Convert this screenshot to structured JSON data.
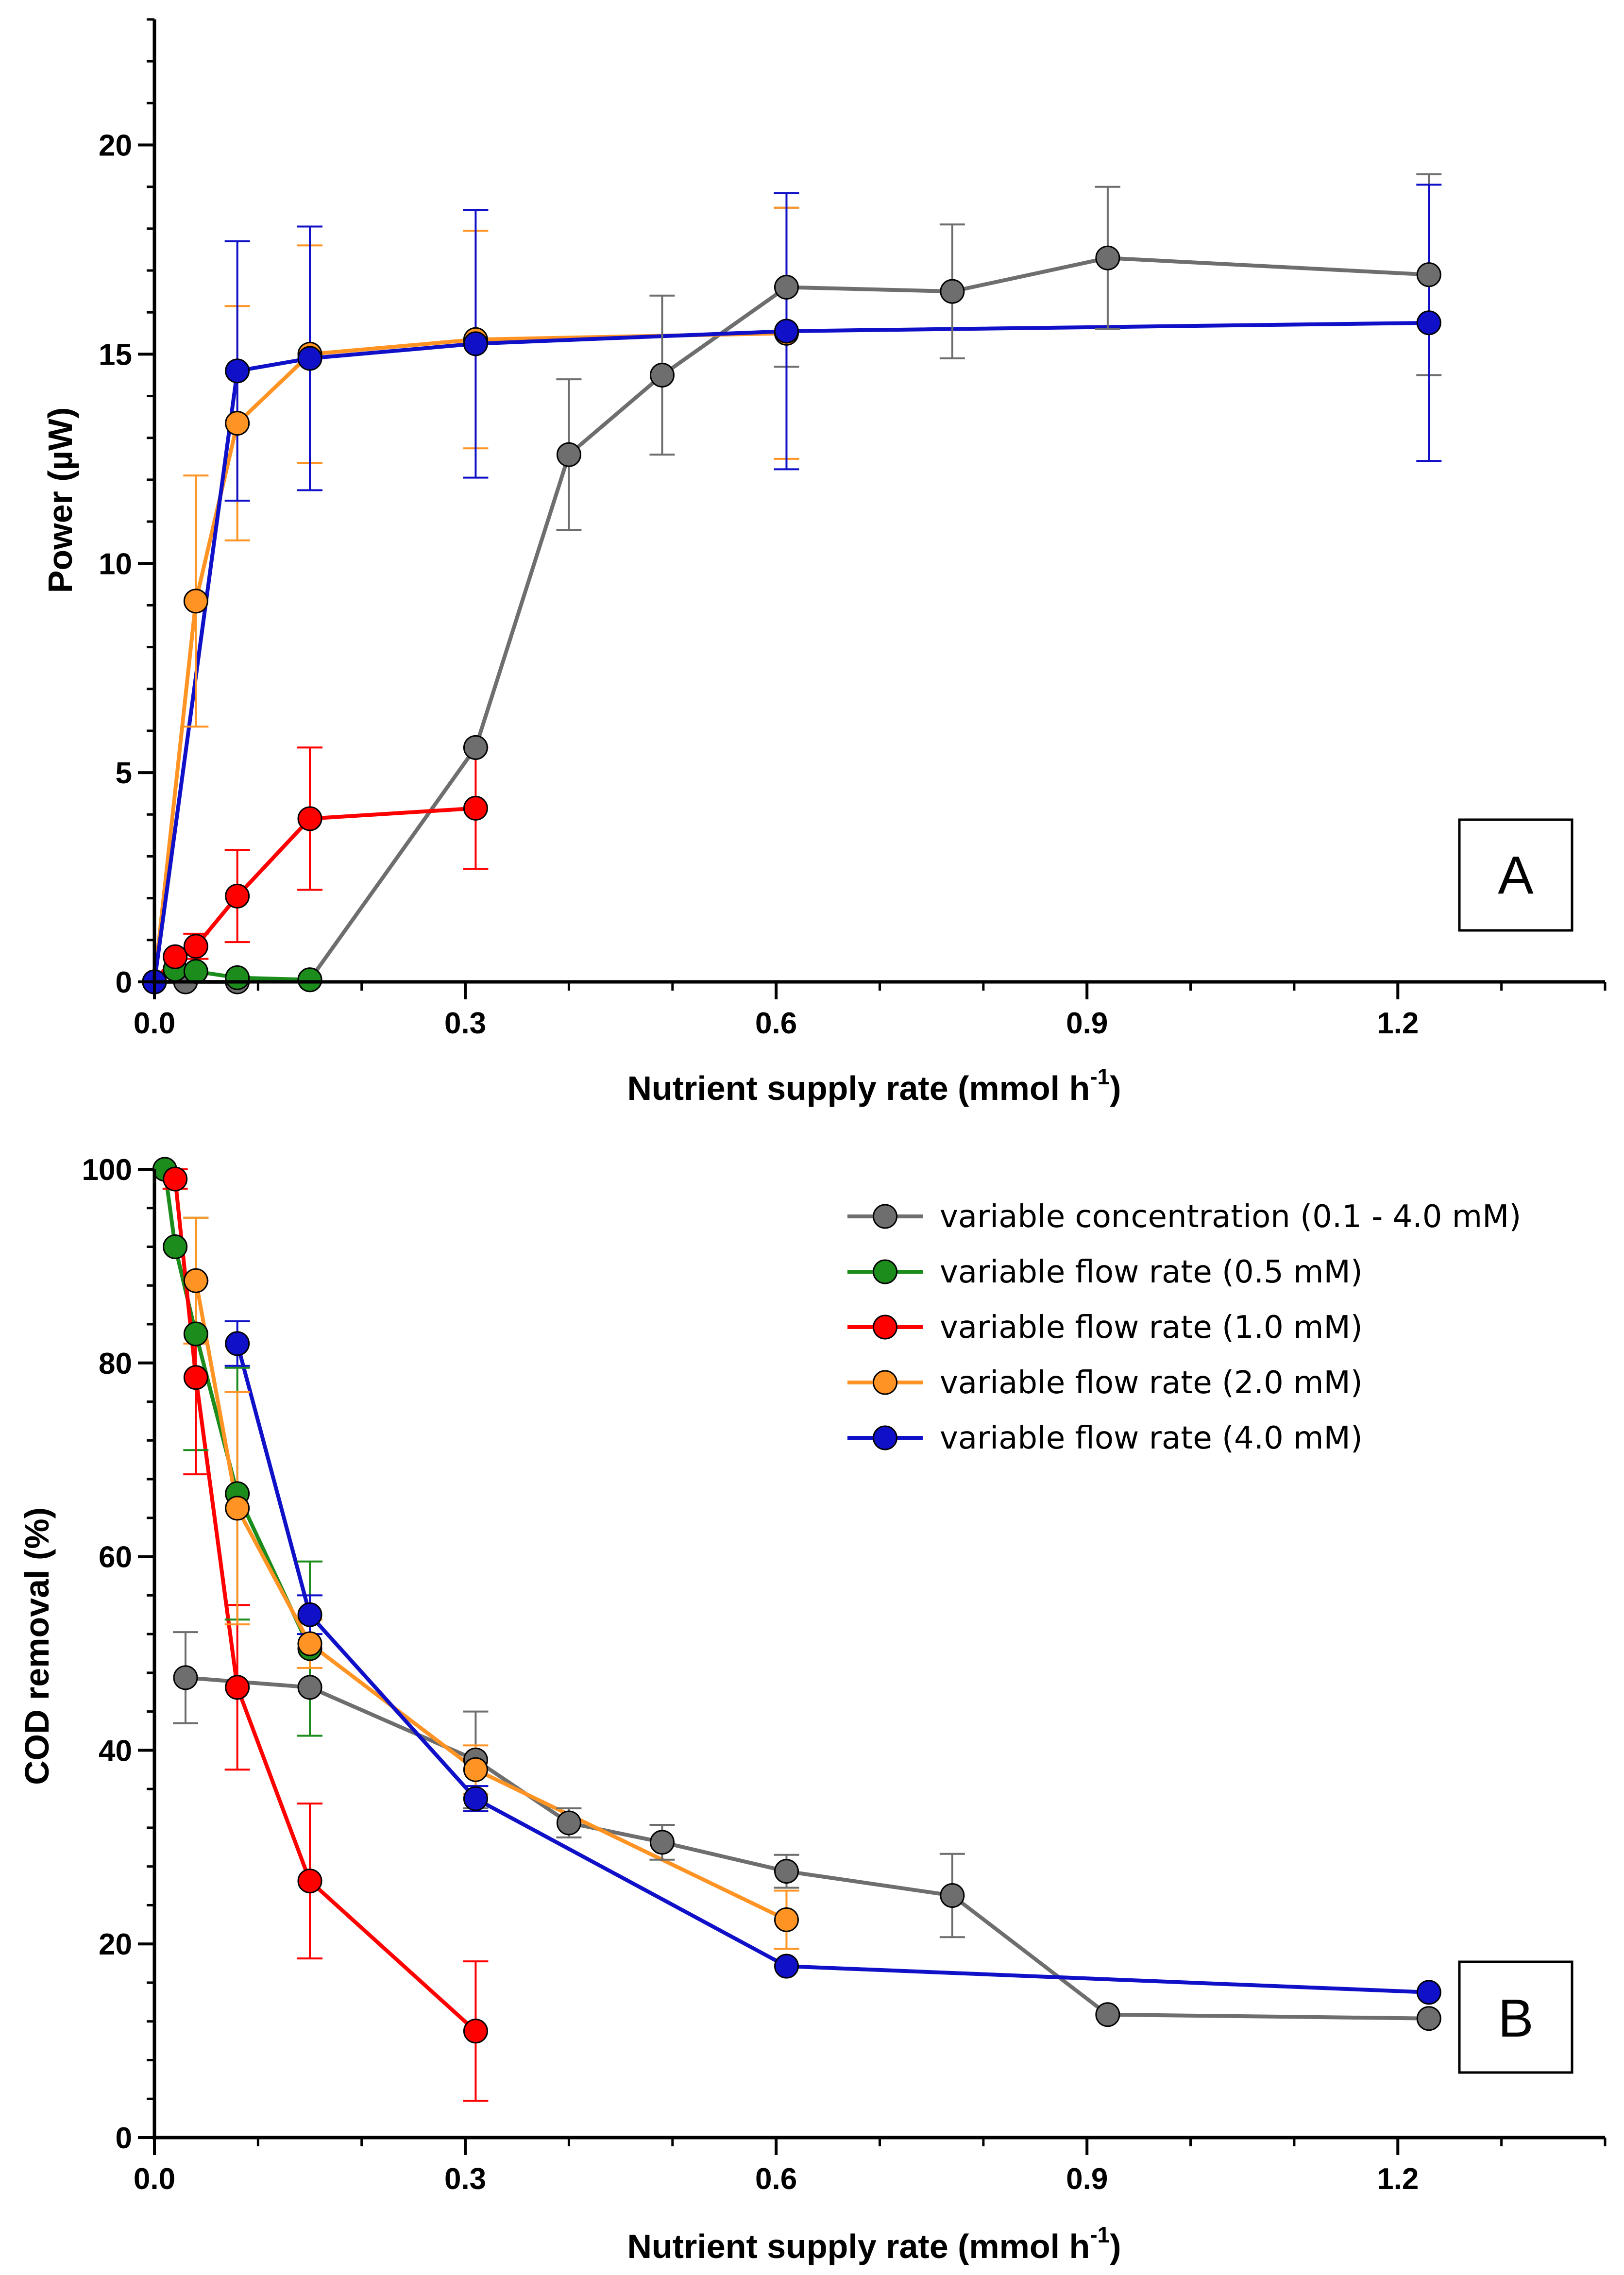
{
  "colors": {
    "grey": "#6e6e6e",
    "green": "#1c8c1c",
    "red": "#ff0000",
    "orange": "#ff9424",
    "blue": "#1010c8"
  },
  "chart_data": [
    {
      "type": "line",
      "id": "A",
      "panel_label": "A",
      "title": "",
      "xlabel": "Nutrient supply rate (mmol h",
      "xlabel_sup": "-1",
      "xlabel_close": ")",
      "ylabel": "Power (µW)",
      "xlim": [
        0,
        1.4
      ],
      "ylim": [
        0,
        23
      ],
      "xticks": [
        0.0,
        0.3,
        0.6,
        0.9,
        1.2
      ],
      "xtick_labels": [
        "0.0",
        "0.3",
        "0.6",
        "0.9",
        "1.2"
      ],
      "yticks": [
        0,
        5,
        10,
        15,
        20
      ],
      "ytick_labels": [
        "0",
        "5",
        "10",
        "15",
        "20"
      ],
      "series": [
        {
          "name": "variable concentration (0.1 - 4.0 mM)",
          "color_key": "grey",
          "x": [
            0.0,
            0.03,
            0.08,
            0.15,
            0.31,
            0.4,
            0.49,
            0.61,
            0.77,
            0.92,
            1.23
          ],
          "y": [
            0.0,
            0.0,
            0.0,
            0.05,
            5.6,
            12.6,
            14.5,
            16.6,
            16.5,
            17.3,
            16.9
          ],
          "err": [
            0,
            0,
            0,
            0,
            0,
            1.8,
            1.9,
            1.9,
            1.6,
            1.7,
            2.4
          ]
        },
        {
          "name": "variable flow rate (0.5 mM)",
          "color_key": "green",
          "x": [
            0.0,
            0.02,
            0.04,
            0.08,
            0.15
          ],
          "y": [
            0.0,
            0.3,
            0.25,
            0.1,
            0.05
          ],
          "err": [
            0,
            0,
            0,
            0,
            0
          ]
        },
        {
          "name": "variable flow rate (1.0 mM)",
          "color_key": "red",
          "x": [
            0.0,
            0.02,
            0.04,
            0.08,
            0.15,
            0.31
          ],
          "y": [
            0.0,
            0.6,
            0.85,
            2.05,
            3.9,
            4.15
          ],
          "err": [
            0,
            0,
            0.3,
            1.1,
            1.7,
            1.45
          ]
        },
        {
          "name": "variable flow rate (2.0 mM)",
          "color_key": "orange",
          "x": [
            0.0,
            0.04,
            0.08,
            0.15,
            0.31,
            0.61
          ],
          "y": [
            0.0,
            9.1,
            13.35,
            15.0,
            15.35,
            15.5
          ],
          "err": [
            0,
            3.0,
            2.8,
            2.6,
            2.6,
            3.0
          ]
        },
        {
          "name": "variable flow rate (4.0 mM)",
          "color_key": "blue",
          "x": [
            0.0,
            0.08,
            0.15,
            0.31,
            0.61,
            1.23
          ],
          "y": [
            0.0,
            14.6,
            14.9,
            15.25,
            15.55,
            15.75
          ],
          "err": [
            0,
            3.1,
            3.15,
            3.2,
            3.3,
            3.3
          ]
        }
      ]
    },
    {
      "type": "line",
      "id": "B",
      "panel_label": "B",
      "title": "",
      "xlabel": "Nutrient supply rate (mmol h",
      "xlabel_sup": "-1",
      "xlabel_close": ")",
      "ylabel": "COD removal (%)",
      "xlim": [
        0,
        1.4
      ],
      "ylim": [
        0,
        100
      ],
      "xticks": [
        0.0,
        0.3,
        0.6,
        0.9,
        1.2
      ],
      "xtick_labels": [
        "0.0",
        "0.3",
        "0.6",
        "0.9",
        "1.2"
      ],
      "yticks": [
        0,
        20,
        40,
        60,
        80,
        100
      ],
      "ytick_labels": [
        "0",
        "20",
        "40",
        "60",
        "80",
        "100"
      ],
      "legend_position": "top-right",
      "series": [
        {
          "name": "variable concentration (0.1 - 4.0 mM)",
          "color_key": "grey",
          "x": [
            0.03,
            0.15,
            0.31,
            0.4,
            0.49,
            0.61,
            0.77,
            0.92,
            1.23
          ],
          "y": [
            47.5,
            46.5,
            39.0,
            32.5,
            30.5,
            27.5,
            25.0,
            12.7,
            12.3
          ],
          "err": [
            4.7,
            0,
            5.0,
            1.5,
            1.8,
            1.7,
            4.3,
            0,
            0
          ]
        },
        {
          "name": "variable flow rate (0.5 mM)",
          "color_key": "green",
          "x": [
            0.01,
            0.02,
            0.04,
            0.08,
            0.15
          ],
          "y": [
            100.0,
            92.0,
            83.0,
            66.5,
            50.5
          ],
          "err": [
            0,
            0,
            12.0,
            13.0,
            9.0
          ]
        },
        {
          "name": "variable flow rate (1.0 mM)",
          "color_key": "red",
          "x": [
            0.02,
            0.04,
            0.08,
            0.15,
            0.31
          ],
          "y": [
            99.0,
            78.5,
            46.5,
            26.5,
            11.0
          ],
          "err": [
            1.0,
            10.0,
            8.5,
            8.0,
            7.2
          ]
        },
        {
          "name": "variable flow rate (2.0 mM)",
          "color_key": "orange",
          "x": [
            0.04,
            0.08,
            0.15,
            0.31,
            0.61
          ],
          "y": [
            88.5,
            65.0,
            51.0,
            38.0,
            22.5
          ],
          "err": [
            6.5,
            12.0,
            2.5,
            2.5,
            3.0
          ]
        },
        {
          "name": "variable flow rate (4.0 mM)",
          "color_key": "blue",
          "x": [
            0.08,
            0.15,
            0.31,
            0.61,
            1.23
          ],
          "y": [
            82.0,
            54.0,
            35.0,
            17.7,
            15.0
          ],
          "err": [
            2.3,
            2.0,
            1.3,
            0,
            0
          ]
        }
      ]
    }
  ]
}
